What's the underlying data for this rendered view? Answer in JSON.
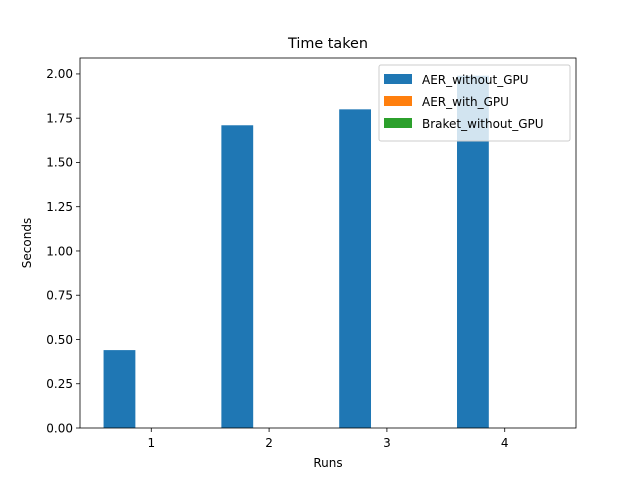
{
  "chart_data": {
    "type": "bar",
    "title": "Time taken",
    "xlabel": "Runs",
    "ylabel": "Seconds",
    "categories": [
      "1",
      "2",
      "3",
      "4"
    ],
    "series": [
      {
        "name": "AER_without_GPU",
        "color": "#1f77b4",
        "values": [
          0.44,
          1.71,
          1.8,
          1.99
        ]
      },
      {
        "name": "AER_with_GPU",
        "color": "#ff7f0e",
        "values": [
          0,
          0,
          0,
          0
        ]
      },
      {
        "name": "Braket_without_GPU",
        "color": "#2ca02c",
        "values": [
          0,
          0,
          0,
          0
        ]
      }
    ],
    "ylim": [
      0,
      2.09
    ],
    "yticks": [
      "0.00",
      "0.25",
      "0.50",
      "0.75",
      "1.00",
      "1.25",
      "1.50",
      "1.75",
      "2.00"
    ],
    "grid": false,
    "legend_position": "top-right"
  }
}
